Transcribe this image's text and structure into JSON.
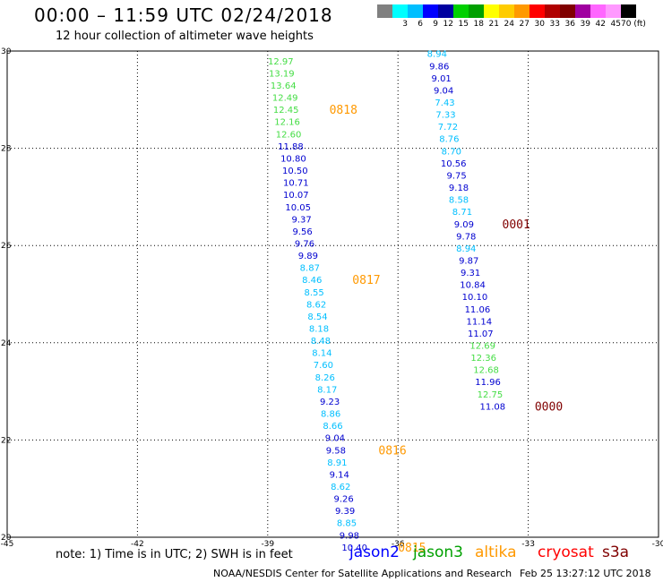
{
  "header": {
    "title": "00:00 – 11:59 UTC 02/24/2018",
    "subtitle": "12 hour collection of altimeter wave heights"
  },
  "colorbar": {
    "colors": [
      "#808080",
      "#00ffff",
      "#00bfff",
      "#0000ff",
      "#0000a0",
      "#00d000",
      "#00a000",
      "#ffff00",
      "#ffcc00",
      "#ff9900",
      "#ff0000",
      "#b00000",
      "#800000",
      "#a000a0",
      "#ff66ff",
      "#ff99ff",
      "#000000"
    ],
    "labels": [
      "",
      "3",
      "6",
      "9",
      "12",
      "15",
      "18",
      "21",
      "24",
      "27",
      "30",
      "33",
      "36",
      "39",
      "42",
      "45",
      "70 (ft)"
    ]
  },
  "chart_data": {
    "type": "map",
    "xlim": [
      -45,
      -30
    ],
    "ylim": [
      20,
      30
    ],
    "x_ticks": [
      -45,
      -42,
      -39,
      -36,
      -33,
      -30
    ],
    "y_ticks": [
      20,
      22,
      24,
      26,
      28,
      30
    ],
    "x_tick_labels": [
      "-45",
      "-42",
      "-39",
      "-36",
      "-33",
      "-30"
    ],
    "y_tick_labels": [
      "20",
      "22",
      "24",
      "26",
      "28",
      "30"
    ],
    "grid": true,
    "series": [
      {
        "name": "jason2",
        "points": [
          {
            "lat": 29.8,
            "lon": -38.7,
            "swh": "12.97"
          },
          {
            "lat": 29.55,
            "lon": -38.68,
            "swh": "13.19"
          },
          {
            "lat": 29.3,
            "lon": -38.64,
            "swh": "13.64"
          },
          {
            "lat": 29.05,
            "lon": -38.6,
            "swh": "12.49"
          },
          {
            "lat": 28.8,
            "lon": -38.58,
            "swh": "12.45"
          },
          {
            "lat": 28.55,
            "lon": -38.55,
            "swh": "12.16"
          },
          {
            "lat": 28.3,
            "lon": -38.52,
            "swh": "12.60"
          },
          {
            "lat": 28.05,
            "lon": -38.47,
            "swh": "11.88"
          },
          {
            "lat": 27.8,
            "lon": -38.41,
            "swh": "10.80"
          },
          {
            "lat": 27.55,
            "lon": -38.37,
            "swh": "10.50"
          },
          {
            "lat": 27.3,
            "lon": -38.35,
            "swh": "10.71"
          },
          {
            "lat": 27.05,
            "lon": -38.35,
            "swh": "10.07"
          },
          {
            "lat": 26.8,
            "lon": -38.3,
            "swh": "10.05"
          },
          {
            "lat": 26.55,
            "lon": -38.22,
            "swh": "9.37"
          },
          {
            "lat": 26.3,
            "lon": -38.2,
            "swh": "9.56"
          },
          {
            "lat": 26.05,
            "lon": -38.15,
            "swh": "9.76"
          },
          {
            "lat": 25.8,
            "lon": -38.07,
            "swh": "9.89"
          },
          {
            "lat": 25.55,
            "lon": -38.03,
            "swh": "8.87"
          },
          {
            "lat": 25.3,
            "lon": -37.98,
            "swh": "8.46"
          },
          {
            "lat": 25.05,
            "lon": -37.93,
            "swh": "8.55"
          },
          {
            "lat": 24.8,
            "lon": -37.88,
            "swh": "8.62"
          },
          {
            "lat": 24.55,
            "lon": -37.85,
            "swh": "8.54"
          },
          {
            "lat": 24.3,
            "lon": -37.82,
            "swh": "8.18"
          },
          {
            "lat": 24.05,
            "lon": -37.78,
            "swh": "8.48"
          },
          {
            "lat": 23.8,
            "lon": -37.75,
            "swh": "8.14"
          },
          {
            "lat": 23.55,
            "lon": -37.72,
            "swh": "7.60"
          },
          {
            "lat": 23.3,
            "lon": -37.68,
            "swh": "8.26"
          },
          {
            "lat": 23.05,
            "lon": -37.63,
            "swh": "8.17"
          },
          {
            "lat": 22.8,
            "lon": -37.57,
            "swh": "9.23"
          },
          {
            "lat": 22.55,
            "lon": -37.55,
            "swh": "8.86"
          },
          {
            "lat": 22.3,
            "lon": -37.5,
            "swh": "8.66"
          },
          {
            "lat": 22.05,
            "lon": -37.45,
            "swh": "9.04"
          },
          {
            "lat": 21.8,
            "lon": -37.43,
            "swh": "9.58"
          },
          {
            "lat": 21.55,
            "lon": -37.4,
            "swh": "8.91"
          },
          {
            "lat": 21.3,
            "lon": -37.35,
            "swh": "9.14"
          },
          {
            "lat": 21.05,
            "lon": -37.32,
            "swh": "8.62"
          },
          {
            "lat": 20.8,
            "lon": -37.25,
            "swh": "9.26"
          },
          {
            "lat": 20.55,
            "lon": -37.22,
            "swh": "9.39"
          },
          {
            "lat": 20.3,
            "lon": -37.18,
            "swh": "8.85"
          },
          {
            "lat": 20.05,
            "lon": -37.12,
            "swh": "9.98"
          },
          {
            "lat": 19.8,
            "lon": -37.0,
            "swh": "10.40"
          }
        ]
      },
      {
        "name": "jason3",
        "points": [
          {
            "lat": 29.95,
            "lon": -35.1,
            "swh": "8.94"
          },
          {
            "lat": 29.7,
            "lon": -35.05,
            "swh": "9.86"
          },
          {
            "lat": 29.45,
            "lon": -35.0,
            "swh": "9.01"
          },
          {
            "lat": 29.2,
            "lon": -34.95,
            "swh": "9.04"
          },
          {
            "lat": 28.95,
            "lon": -34.92,
            "swh": "7.43"
          },
          {
            "lat": 28.7,
            "lon": -34.9,
            "swh": "7.33"
          },
          {
            "lat": 28.45,
            "lon": -34.85,
            "swh": "7.72"
          },
          {
            "lat": 28.2,
            "lon": -34.82,
            "swh": "8.76"
          },
          {
            "lat": 27.95,
            "lon": -34.77,
            "swh": "8.70"
          },
          {
            "lat": 27.7,
            "lon": -34.72,
            "swh": "10.56"
          },
          {
            "lat": 27.45,
            "lon": -34.65,
            "swh": "9.75"
          },
          {
            "lat": 27.2,
            "lon": -34.6,
            "swh": "9.18"
          },
          {
            "lat": 26.95,
            "lon": -34.6,
            "swh": "8.58"
          },
          {
            "lat": 26.7,
            "lon": -34.52,
            "swh": "8.71"
          },
          {
            "lat": 26.45,
            "lon": -34.48,
            "swh": "9.09"
          },
          {
            "lat": 26.2,
            "lon": -34.43,
            "swh": "9.78"
          },
          {
            "lat": 25.95,
            "lon": -34.43,
            "swh": "8.94"
          },
          {
            "lat": 25.7,
            "lon": -34.37,
            "swh": "9.87"
          },
          {
            "lat": 25.45,
            "lon": -34.33,
            "swh": "9.31"
          },
          {
            "lat": 25.2,
            "lon": -34.28,
            "swh": "10.84"
          },
          {
            "lat": 24.95,
            "lon": -34.23,
            "swh": "10.10"
          },
          {
            "lat": 24.7,
            "lon": -34.17,
            "swh": "11.06"
          },
          {
            "lat": 24.45,
            "lon": -34.13,
            "swh": "11.14"
          },
          {
            "lat": 24.2,
            "lon": -34.1,
            "swh": "11.07"
          },
          {
            "lat": 23.95,
            "lon": -34.05,
            "swh": "12.69"
          },
          {
            "lat": 23.7,
            "lon": -34.03,
            "swh": "12.36"
          },
          {
            "lat": 23.45,
            "lon": -33.97,
            "swh": "12.68"
          },
          {
            "lat": 23.2,
            "lon": -33.93,
            "swh": "11.96"
          },
          {
            "lat": 22.95,
            "lon": -33.88,
            "swh": "12.75"
          },
          {
            "lat": 22.7,
            "lon": -33.82,
            "swh": "11.08"
          }
        ]
      }
    ],
    "time_labels": [
      {
        "text": "0818",
        "lat": 28.8,
        "lon": -37.58,
        "color": "#ff9900"
      },
      {
        "text": "0817",
        "lat": 25.3,
        "lon": -37.05,
        "color": "#ff9900"
      },
      {
        "text": "0816",
        "lat": 21.8,
        "lon": -36.45,
        "color": "#ff9900"
      },
      {
        "text": "0815",
        "lat": 19.8,
        "lon": -36.0,
        "color": "#ff9900"
      },
      {
        "text": "0001",
        "lat": 26.45,
        "lon": -33.6,
        "color": "#800000"
      },
      {
        "text": "0000",
        "lat": 22.7,
        "lon": -32.85,
        "color": "#800000"
      }
    ]
  },
  "note": "note: 1) Time is in UTC; 2) SWH is in feet",
  "legend": [
    {
      "label": "jason2",
      "color": "#0000ff"
    },
    {
      "label": "jason3",
      "color": "#00a000"
    },
    {
      "label": "altika",
      "color": "#ff9900"
    },
    {
      "label": "cryosat",
      "color": "#ff0000"
    },
    {
      "label": "s3a",
      "color": "#800000"
    }
  ],
  "footer": {
    "credit": "NOAA/NESDIS Center for Satellite Applications and Research",
    "timestamp": "Feb 25 13:27:12 UTC 2018"
  }
}
